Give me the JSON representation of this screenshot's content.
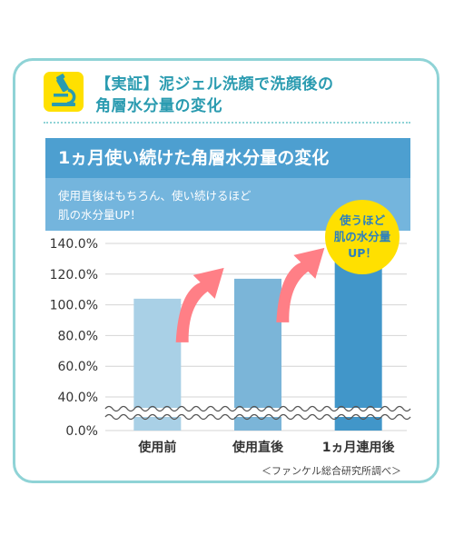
{
  "header": {
    "title_line1": "【実証】泥ジェル洗顔で洗顔後の",
    "title_line2": "角層水分量の変化",
    "icon": "microscope-icon"
  },
  "banner": {
    "title": "1ヵ月使い続けた角層水分量の変化"
  },
  "subtitle": {
    "line1": "使用直後はもちろん、使い続けるほど",
    "line2": "肌の水分量UP！"
  },
  "callout": {
    "line1": "使うほど",
    "line2": "肌の水分量",
    "line3": "UP！"
  },
  "source_note": "＜ファンケル総合研究所調べ＞",
  "colors": {
    "accent": "#4d9fd0",
    "frame": "#8fd3d6",
    "callout": "#ffe000",
    "arrow": "#ff7f86",
    "bar_light": "#a9d0e6",
    "bar_mid": "#7bb5d8",
    "bar_dark": "#4196c9"
  },
  "chart_data": {
    "type": "bar",
    "categories": [
      "使用前",
      "使用直後",
      "1ヵ月連用後"
    ],
    "values": [
      104,
      117,
      130
    ],
    "y_ticks": [
      "140.0%",
      "120.0%",
      "100.0%",
      "80.0%",
      "60.0%",
      "40.0%",
      "0.0%"
    ],
    "y_tick_values": [
      140,
      120,
      100,
      80,
      60,
      40,
      0
    ],
    "axis_break": "between 0.0% and 40.0%",
    "ylim": [
      0,
      140
    ],
    "grid": true,
    "title": "1ヵ月使い続けた角層水分量の変化",
    "xlabel": "",
    "ylabel": ""
  }
}
